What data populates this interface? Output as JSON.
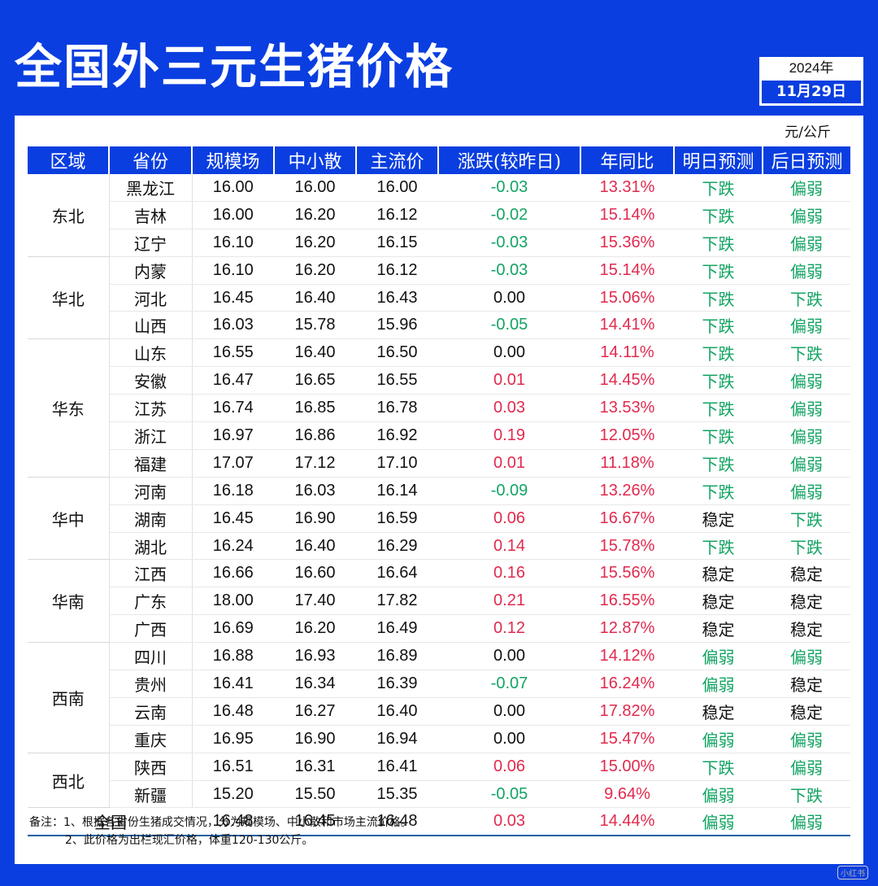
{
  "title": "全国外三元生猪价格",
  "date": {
    "year": "2024年",
    "day": "11月29日"
  },
  "unit": "元/公斤",
  "headers": [
    "区域",
    "省份",
    "规模场",
    "中小散",
    "主流价",
    "涨跌(较昨日)",
    "年同比",
    "明日预测",
    "后日预测"
  ],
  "colors": {
    "up": "#e02a4e",
    "down": "#13a463",
    "flat": "#111111",
    "brand": "#0a3ee0"
  },
  "groups": [
    {
      "region": "东北",
      "rows": [
        {
          "province": "黑龙江",
          "scale": "16.00",
          "small": "16.00",
          "main": "16.00",
          "change": "-0.03",
          "yoy": "13.31%",
          "tomorrow": "下跌",
          "after": "偏弱"
        },
        {
          "province": "吉林",
          "scale": "16.00",
          "small": "16.20",
          "main": "16.12",
          "change": "-0.02",
          "yoy": "15.14%",
          "tomorrow": "下跌",
          "after": "偏弱"
        },
        {
          "province": "辽宁",
          "scale": "16.10",
          "small": "16.20",
          "main": "16.15",
          "change": "-0.03",
          "yoy": "15.36%",
          "tomorrow": "下跌",
          "after": "偏弱"
        }
      ]
    },
    {
      "region": "华北",
      "rows": [
        {
          "province": "内蒙",
          "scale": "16.10",
          "small": "16.20",
          "main": "16.12",
          "change": "-0.03",
          "yoy": "15.14%",
          "tomorrow": "下跌",
          "after": "偏弱"
        },
        {
          "province": "河北",
          "scale": "16.45",
          "small": "16.40",
          "main": "16.43",
          "change": "0.00",
          "yoy": "15.06%",
          "tomorrow": "下跌",
          "after": "下跌"
        },
        {
          "province": "山西",
          "scale": "16.03",
          "small": "15.78",
          "main": "15.96",
          "change": "-0.05",
          "yoy": "14.41%",
          "tomorrow": "下跌",
          "after": "偏弱"
        }
      ]
    },
    {
      "region": "华东",
      "rows": [
        {
          "province": "山东",
          "scale": "16.55",
          "small": "16.40",
          "main": "16.50",
          "change": "0.00",
          "yoy": "14.11%",
          "tomorrow": "下跌",
          "after": "下跌"
        },
        {
          "province": "安徽",
          "scale": "16.47",
          "small": "16.65",
          "main": "16.55",
          "change": "0.01",
          "yoy": "14.45%",
          "tomorrow": "下跌",
          "after": "偏弱"
        },
        {
          "province": "江苏",
          "scale": "16.74",
          "small": "16.85",
          "main": "16.78",
          "change": "0.03",
          "yoy": "13.53%",
          "tomorrow": "下跌",
          "after": "偏弱"
        },
        {
          "province": "浙江",
          "scale": "16.97",
          "small": "16.86",
          "main": "16.92",
          "change": "0.19",
          "yoy": "12.05%",
          "tomorrow": "下跌",
          "after": "偏弱"
        },
        {
          "province": "福建",
          "scale": "17.07",
          "small": "17.12",
          "main": "17.10",
          "change": "0.01",
          "yoy": "11.18%",
          "tomorrow": "下跌",
          "after": "偏弱"
        }
      ]
    },
    {
      "region": "华中",
      "rows": [
        {
          "province": "河南",
          "scale": "16.18",
          "small": "16.03",
          "main": "16.14",
          "change": "-0.09",
          "yoy": "13.26%",
          "tomorrow": "下跌",
          "after": "偏弱"
        },
        {
          "province": "湖南",
          "scale": "16.45",
          "small": "16.90",
          "main": "16.59",
          "change": "0.06",
          "yoy": "16.67%",
          "tomorrow": "稳定",
          "after": "下跌"
        },
        {
          "province": "湖北",
          "scale": "16.24",
          "small": "16.40",
          "main": "16.29",
          "change": "0.14",
          "yoy": "15.78%",
          "tomorrow": "下跌",
          "after": "下跌"
        }
      ]
    },
    {
      "region": "华南",
      "rows": [
        {
          "province": "江西",
          "scale": "16.66",
          "small": "16.60",
          "main": "16.64",
          "change": "0.16",
          "yoy": "15.56%",
          "tomorrow": "稳定",
          "after": "稳定"
        },
        {
          "province": "广东",
          "scale": "18.00",
          "small": "17.40",
          "main": "17.82",
          "change": "0.21",
          "yoy": "16.55%",
          "tomorrow": "稳定",
          "after": "稳定"
        },
        {
          "province": "广西",
          "scale": "16.69",
          "small": "16.20",
          "main": "16.49",
          "change": "0.12",
          "yoy": "12.87%",
          "tomorrow": "稳定",
          "after": "稳定"
        }
      ]
    },
    {
      "region": "西南",
      "rows": [
        {
          "province": "四川",
          "scale": "16.88",
          "small": "16.93",
          "main": "16.89",
          "change": "0.00",
          "yoy": "14.12%",
          "tomorrow": "偏弱",
          "after": "偏弱"
        },
        {
          "province": "贵州",
          "scale": "16.41",
          "small": "16.34",
          "main": "16.39",
          "change": "-0.07",
          "yoy": "16.24%",
          "tomorrow": "偏弱",
          "after": "稳定"
        },
        {
          "province": "云南",
          "scale": "16.48",
          "small": "16.27",
          "main": "16.40",
          "change": "0.00",
          "yoy": "17.82%",
          "tomorrow": "稳定",
          "after": "稳定"
        },
        {
          "province": "重庆",
          "scale": "16.95",
          "small": "16.90",
          "main": "16.94",
          "change": "0.00",
          "yoy": "15.47%",
          "tomorrow": "偏弱",
          "after": "偏弱"
        }
      ]
    },
    {
      "region": "西北",
      "rows": [
        {
          "province": "陕西",
          "scale": "16.51",
          "small": "16.31",
          "main": "16.41",
          "change": "0.06",
          "yoy": "15.00%",
          "tomorrow": "下跌",
          "after": "偏弱"
        },
        {
          "province": "新疆",
          "scale": "15.20",
          "small": "15.50",
          "main": "15.35",
          "change": "-0.05",
          "yoy": "9.64%",
          "tomorrow": "偏弱",
          "after": "下跌"
        }
      ]
    }
  ],
  "total": {
    "label": "全国",
    "scale": "16.48",
    "small": "16.45",
    "main": "16.48",
    "change": "0.03",
    "yoy": "14.44%",
    "tomorrow": "偏弱",
    "after": "偏弱"
  },
  "notes": [
    "备注：1、根据各省份生猪成交情况，分为规模场、中小散和市场主流价格。",
    "2、此价格为出栏现汇价格，体重120-130公斤。"
  ],
  "watermark": "小红书"
}
